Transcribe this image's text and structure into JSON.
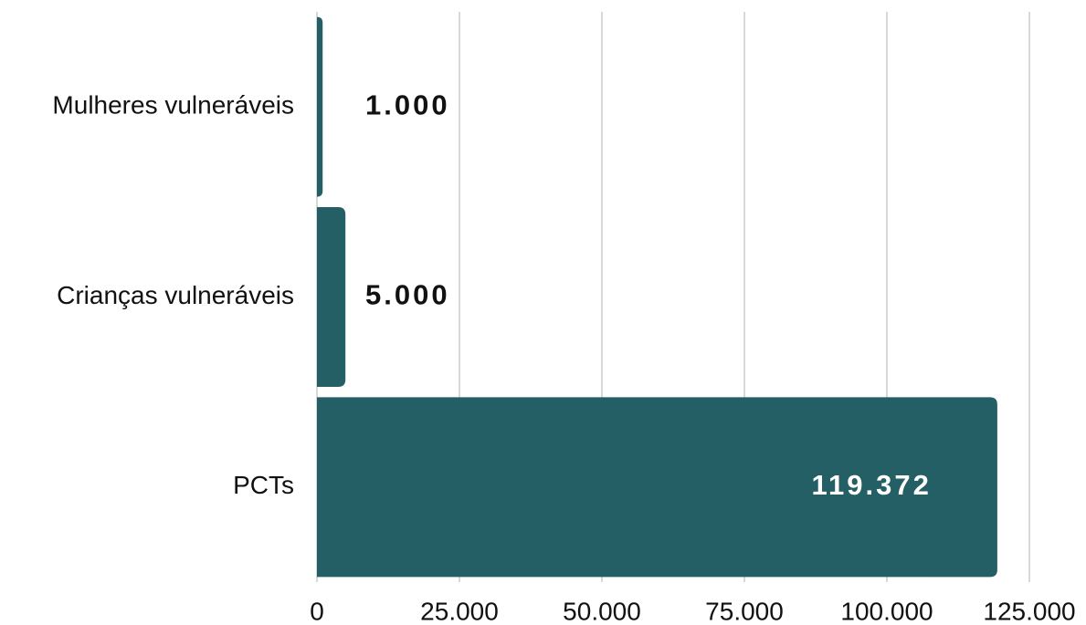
{
  "chart_data": {
    "type": "bar",
    "orientation": "horizontal",
    "categories": [
      "Mulheres vulneráveis",
      "Crianças vulneráveis",
      "PCTs"
    ],
    "values": [
      1000,
      5000,
      119372
    ],
    "value_labels": [
      "1.000",
      "5.000",
      "119.372"
    ],
    "color": "#245f66",
    "xlim": [
      0,
      125000
    ],
    "xticks": [
      0,
      {
        "value": 25000,
        "label": "25.000"
      },
      {
        "value": 50000,
        "label": "50.000"
      },
      {
        "value": 75000,
        "label": "75.000"
      },
      {
        "value": 100000,
        "label": "100.000"
      },
      {
        "value": 125000,
        "label": "125.000"
      }
    ],
    "grid": true
  }
}
